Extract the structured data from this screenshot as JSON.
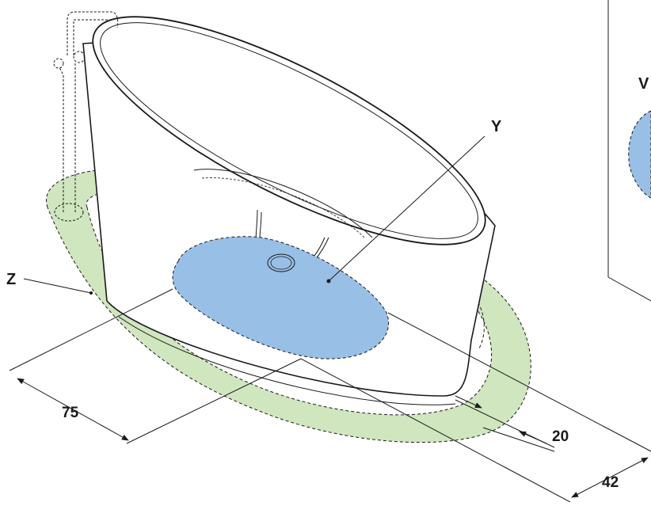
{
  "zones": {
    "z_label": "Z",
    "y_label": "Y",
    "v_label_partial": "V"
  },
  "dimensions": {
    "left_dimension": "75",
    "front_dimension": "20",
    "right_dimension": "42"
  },
  "colors": {
    "zone_z_fill": "#cfe6bf",
    "zone_y_fill": "#98bfe6",
    "line": "#1a1a1a",
    "background": "#ffffff"
  }
}
